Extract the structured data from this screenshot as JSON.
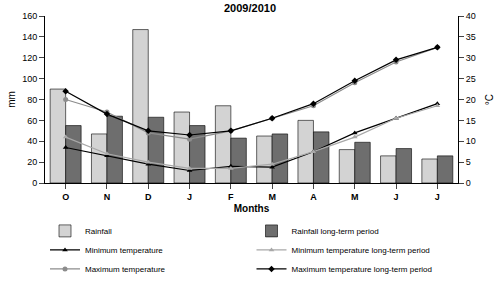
{
  "chart_data": {
    "type": "bar",
    "title": "2009/2010",
    "x_label": "Months",
    "y_label": "mm",
    "y2_label": "°C",
    "categories": [
      "O",
      "N",
      "D",
      "J",
      "F",
      "M",
      "A",
      "M",
      "J",
      "J"
    ],
    "ylim": [
      0,
      160
    ],
    "yticks": [
      0,
      20,
      40,
      60,
      80,
      100,
      120,
      140,
      160
    ],
    "y2lim": [
      0,
      40
    ],
    "y2ticks": [
      0,
      5,
      10,
      15,
      20,
      25,
      30,
      35,
      40
    ],
    "grid": false,
    "legend": "bottom",
    "series": [
      {
        "name": "Rainfall",
        "type": "bar",
        "color": "#d3d3d3",
        "values": [
          90,
          47,
          147,
          68,
          74,
          45,
          60,
          32,
          26,
          23
        ]
      },
      {
        "name": "Rainfall long-term period",
        "type": "bar",
        "color": "#6e6e6e",
        "values": [
          55,
          64,
          63,
          55,
          43,
          47,
          49,
          39,
          33,
          26
        ]
      },
      {
        "name": "Minimum temperature",
        "type": "line",
        "axis": "y2",
        "color": "#000000",
        "marker": "triangle-up",
        "line_style": "solid",
        "values": [
          8.5,
          6.5,
          4.5,
          3,
          4,
          3.8,
          7.5,
          12,
          15.5,
          19
        ]
      },
      {
        "name": "Minimum temperature long-term period",
        "type": "line",
        "axis": "y2",
        "color": "#a8a8a8",
        "marker": "triangle-up",
        "line_style": "solid",
        "values": [
          11,
          7,
          5,
          3.5,
          3.5,
          4.5,
          7.5,
          11,
          15.5,
          18.5
        ]
      },
      {
        "name": "Maximum temperature",
        "type": "line",
        "axis": "y2",
        "color": "#8c8c8c",
        "marker": "circle",
        "line_style": "solid",
        "values": [
          20,
          17,
          12,
          10.5,
          12.5,
          15.5,
          18.5,
          24,
          29,
          32.5
        ]
      },
      {
        "name": "Maximum temperature long-term period",
        "type": "line",
        "axis": "y2",
        "color": "#000000",
        "marker": "diamond",
        "line_style": "solid",
        "values": [
          22,
          16.5,
          12.5,
          11.5,
          12.5,
          15.5,
          19,
          24.5,
          29.5,
          32.5
        ]
      }
    ]
  }
}
